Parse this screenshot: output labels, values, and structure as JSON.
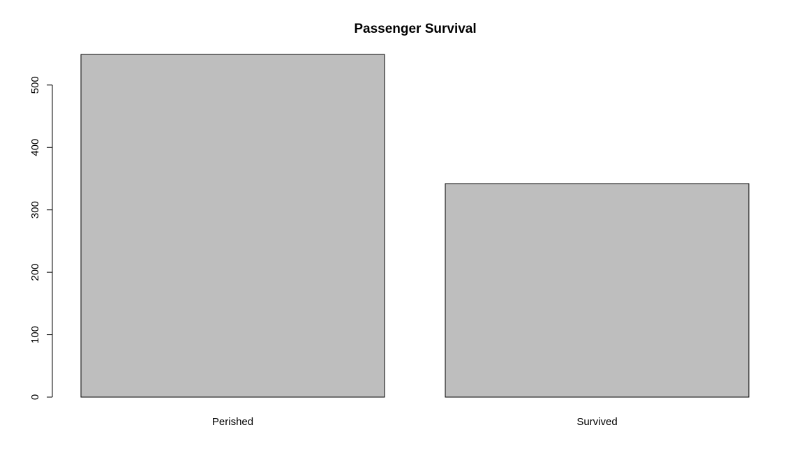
{
  "chart_data": {
    "type": "bar",
    "title": "Passenger Survival",
    "xlabel": "",
    "ylabel": "",
    "categories": [
      "Perished",
      "Survived"
    ],
    "values": [
      549,
      342
    ],
    "ylim": [
      0,
      549
    ],
    "y_ticks": [
      0,
      100,
      200,
      300,
      400,
      500
    ],
    "y_tick_labels": [
      "0",
      "100",
      "200",
      "300",
      "400",
      "500"
    ],
    "bar_fill": "#bebebe",
    "bar_border": "#000000",
    "grid": false,
    "legend": "none"
  }
}
